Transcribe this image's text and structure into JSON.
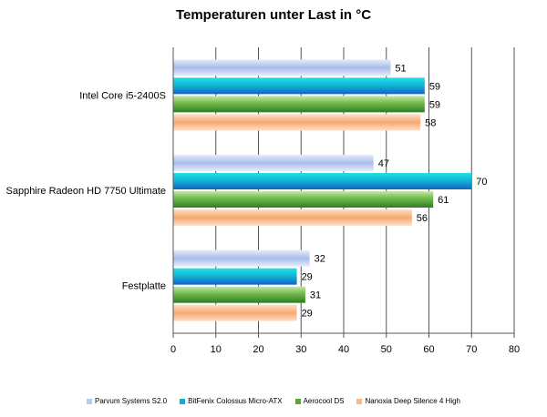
{
  "chart_data": {
    "type": "bar",
    "orientation": "horizontal",
    "title": "Temperaturen  unter Last in °C",
    "xlabel": "",
    "ylabel": "",
    "categories": [
      "Intel Core i5-2400S",
      "Sapphire Radeon HD 7750 Ultimate",
      "Festplatte"
    ],
    "series": [
      {
        "name": "Parvum Systems S2.0",
        "values": [
          51,
          47,
          32
        ],
        "color": "#b8c8ee"
      },
      {
        "name": "BitFenix Colossus Micro-ATX",
        "values": [
          59,
          70,
          29
        ],
        "color": "#1aa6d8"
      },
      {
        "name": "Aerocool DS",
        "values": [
          59,
          61,
          31
        ],
        "color": "#5fa63a"
      },
      {
        "name": "Nanoxia Deep Silence 4 High",
        "values": [
          58,
          56,
          29
        ],
        "color": "#f8b888"
      }
    ],
    "xlim": [
      0,
      80
    ],
    "ticks": [
      0,
      10,
      20,
      30,
      40,
      50,
      60,
      70,
      80
    ],
    "grid": true,
    "legend": "bottom"
  }
}
